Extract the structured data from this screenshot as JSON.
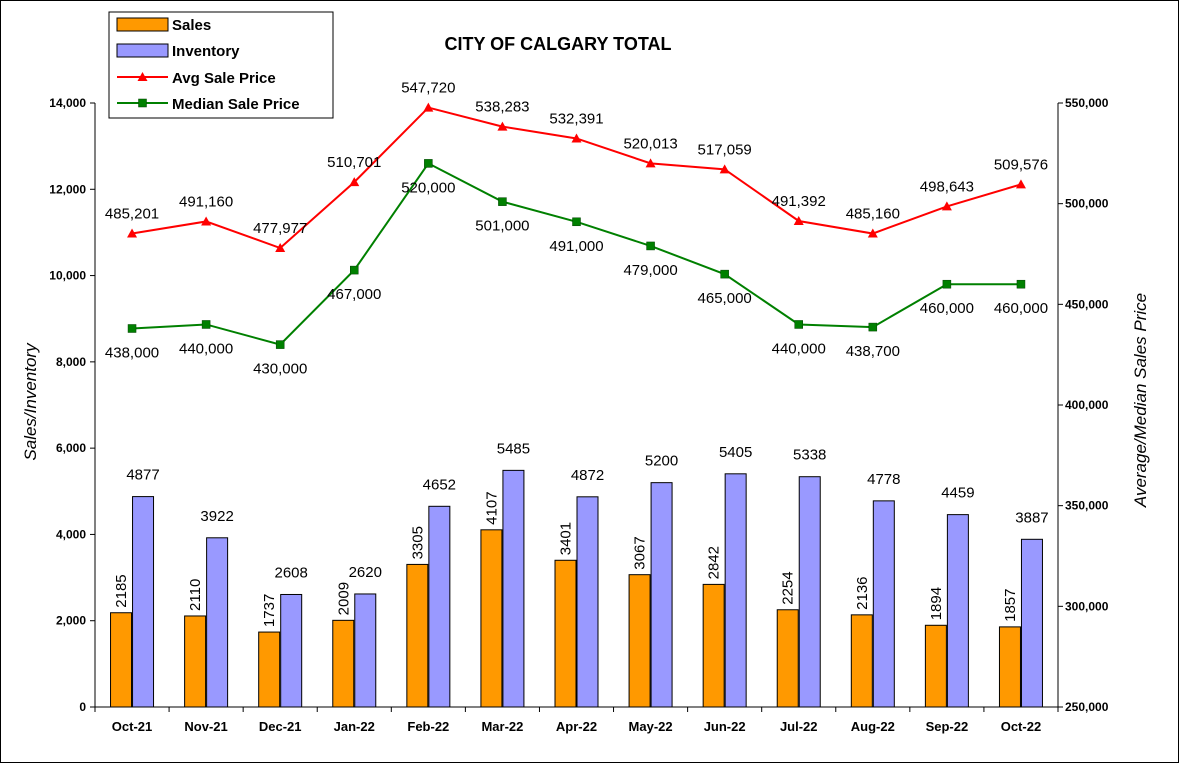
{
  "chart_data": {
    "type": "bar",
    "title": "CITY OF CALGARY TOTAL",
    "categories": [
      "Oct-21",
      "Nov-21",
      "Dec-21",
      "Jan-22",
      "Feb-22",
      "Mar-22",
      "Apr-22",
      "May-22",
      "Jun-22",
      "Jul-22",
      "Aug-22",
      "Sep-22",
      "Oct-22"
    ],
    "ylabel_left": "Sales/Inventory",
    "ylabel_right": "Average/Median Sales Price",
    "ylim_left": [
      0,
      14000
    ],
    "ylim_right": [
      250000,
      550000
    ],
    "yticks_left": [
      "0",
      "2,000",
      "4,000",
      "6,000",
      "8,000",
      "10,000",
      "12,000",
      "14,000"
    ],
    "yticks_right": [
      "250,000",
      "300,000",
      "350,000",
      "400,000",
      "450,000",
      "500,000",
      "550,000"
    ],
    "legend_position": "top-left",
    "grid": false,
    "series": [
      {
        "name": "Sales",
        "type": "bar",
        "axis": "left",
        "color": "#FF9900",
        "values": [
          2185,
          2110,
          1737,
          2009,
          3305,
          4107,
          3401,
          3067,
          2842,
          2254,
          2136,
          1894,
          1857
        ],
        "labels": [
          "2185",
          "2110",
          "1737",
          "2009",
          "3305",
          "4107",
          "3401",
          "3067",
          "2842",
          "2254",
          "2136",
          "1894",
          "1857"
        ]
      },
      {
        "name": "Inventory",
        "type": "bar",
        "axis": "left",
        "color": "#9999FF",
        "values": [
          4877,
          3922,
          2608,
          2620,
          4652,
          5485,
          4872,
          5200,
          5405,
          5338,
          4778,
          4459,
          3887
        ],
        "labels": [
          "4877",
          "3922",
          "2608",
          "2620",
          "4652",
          "5485",
          "4872",
          "5200",
          "5405",
          "5338",
          "4778",
          "4459",
          "3887"
        ]
      },
      {
        "name": "Avg Sale Price",
        "type": "line",
        "axis": "right",
        "color": "#FF0000",
        "marker": "triangle",
        "values": [
          485201,
          491160,
          477977,
          510701,
          547720,
          538283,
          532391,
          520013,
          517059,
          491392,
          485160,
          498643,
          509576
        ],
        "labels": [
          "485,201",
          "491,160",
          "477,977",
          "510,701",
          "547,720",
          "538,283",
          "532,391",
          "520,013",
          "517,059",
          "491,392",
          "485,160",
          "498,643",
          "509,576"
        ]
      },
      {
        "name": "Median Sale Price",
        "type": "line",
        "axis": "right",
        "color": "#008000",
        "marker": "square",
        "values": [
          438000,
          440000,
          430000,
          467000,
          520000,
          501000,
          491000,
          479000,
          465000,
          440000,
          438700,
          460000,
          460000
        ],
        "labels": [
          "438,000",
          "440,000",
          "430,000",
          "467,000",
          "520,000",
          "501,000",
          "491,000",
          "479,000",
          "465,000",
          "440,000",
          "438,700",
          "460,000",
          "460,000"
        ]
      }
    ]
  }
}
